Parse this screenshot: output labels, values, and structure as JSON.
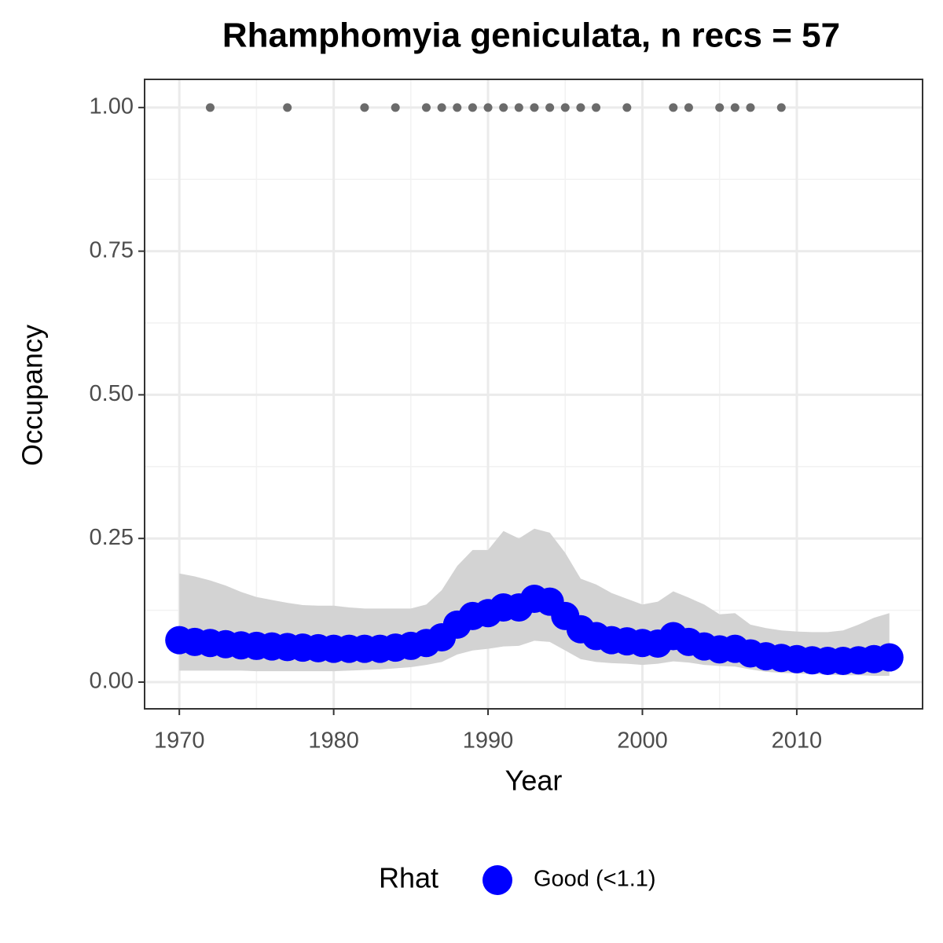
{
  "chart_data": {
    "type": "line",
    "title": "Rhamphomyia geniculata, n recs = 57",
    "x_label": "Year",
    "y_label": "Occupancy",
    "x": [
      1970,
      1971,
      1972,
      1973,
      1974,
      1975,
      1976,
      1977,
      1978,
      1979,
      1980,
      1981,
      1982,
      1983,
      1984,
      1985,
      1986,
      1987,
      1988,
      1989,
      1990,
      1991,
      1992,
      1993,
      1994,
      1995,
      1996,
      1997,
      1998,
      1999,
      2000,
      2001,
      2002,
      2003,
      2004,
      2005,
      2006,
      2007,
      2008,
      2009,
      2010,
      2011,
      2012,
      2013,
      2014,
      2015,
      2016
    ],
    "series": [
      {
        "name": "Good (<1.1)",
        "color": "#0000ff",
        "values": [
          0.073,
          0.07,
          0.068,
          0.066,
          0.064,
          0.063,
          0.062,
          0.061,
          0.06,
          0.059,
          0.058,
          0.058,
          0.058,
          0.058,
          0.06,
          0.063,
          0.068,
          0.078,
          0.1,
          0.115,
          0.12,
          0.13,
          0.13,
          0.145,
          0.14,
          0.115,
          0.092,
          0.08,
          0.073,
          0.071,
          0.068,
          0.067,
          0.08,
          0.07,
          0.062,
          0.057,
          0.058,
          0.05,
          0.045,
          0.042,
          0.04,
          0.038,
          0.037,
          0.037,
          0.038,
          0.04,
          0.043
        ]
      }
    ],
    "band": {
      "color": "#d3d3d3",
      "lower": [
        0.02,
        0.02,
        0.02,
        0.02,
        0.02,
        0.019,
        0.019,
        0.019,
        0.019,
        0.019,
        0.019,
        0.02,
        0.021,
        0.022,
        0.024,
        0.026,
        0.03,
        0.035,
        0.048,
        0.055,
        0.058,
        0.062,
        0.063,
        0.072,
        0.07,
        0.055,
        0.04,
        0.035,
        0.033,
        0.032,
        0.03,
        0.032,
        0.036,
        0.034,
        0.03,
        0.028,
        0.027,
        0.022,
        0.018,
        0.016,
        0.015,
        0.014,
        0.013,
        0.012,
        0.012,
        0.011,
        0.011
      ],
      "upper": [
        0.189,
        0.184,
        0.177,
        0.168,
        0.157,
        0.148,
        0.143,
        0.138,
        0.134,
        0.133,
        0.133,
        0.13,
        0.128,
        0.128,
        0.128,
        0.128,
        0.135,
        0.16,
        0.202,
        0.23,
        0.23,
        0.263,
        0.25,
        0.267,
        0.26,
        0.225,
        0.18,
        0.17,
        0.155,
        0.145,
        0.135,
        0.14,
        0.158,
        0.147,
        0.135,
        0.118,
        0.12,
        0.1,
        0.094,
        0.09,
        0.088,
        0.087,
        0.087,
        0.09,
        0.1,
        0.112,
        0.12
      ]
    },
    "records": {
      "color": "#6b6b6b",
      "x": [
        1972,
        1977,
        1982,
        1984,
        1986,
        1987,
        1988,
        1989,
        1990,
        1991,
        1992,
        1993,
        1994,
        1995,
        1996,
        1997,
        1999,
        2002,
        2003,
        2005,
        2006,
        2007,
        2009
      ],
      "values": [
        1,
        1,
        1,
        1,
        1,
        1,
        1,
        1,
        1,
        1,
        1,
        1,
        1,
        1,
        1,
        1,
        1,
        1,
        1,
        1,
        1,
        1,
        1
      ]
    },
    "xlim": [
      1967.75,
      2018.15
    ],
    "ylim": [
      -0.0465,
      1.049
    ],
    "xticks": [
      1970,
      1980,
      1990,
      2000,
      2010
    ],
    "yticks": [
      {
        "value": 0,
        "label": "0.00"
      },
      {
        "value": 0.25,
        "label": "0.25"
      },
      {
        "value": 0.5,
        "label": "0.50"
      },
      {
        "value": 0.75,
        "label": "0.75"
      },
      {
        "value": 1,
        "label": "1.00"
      }
    ],
    "grid": true,
    "minor_grid": true,
    "legend": {
      "title": "Rhat",
      "position": "bottom"
    }
  }
}
